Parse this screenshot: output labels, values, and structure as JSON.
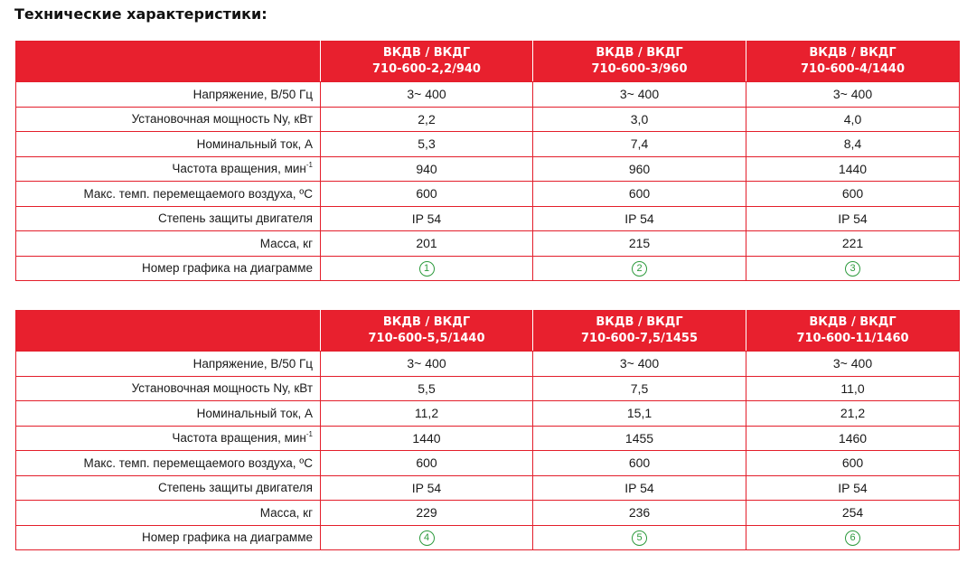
{
  "title": "Технические характеристики:",
  "tables": [
    {
      "models": [
        "ВКДВ / ВКДГ\n710-600-2,2/940",
        "ВКДВ / ВКДГ\n710-600-3/960",
        "ВКДВ / ВКДГ\n710-600-4/1440"
      ],
      "rows": [
        {
          "label": "Напряжение, В/50 Гц",
          "values": [
            "3~ 400",
            "3~ 400",
            "3~ 400"
          ]
        },
        {
          "label": "Установочная мощность Ny, кВт",
          "values": [
            "2,2",
            "3,0",
            "4,0"
          ]
        },
        {
          "label": "Номинальный ток, А",
          "values": [
            "5,3",
            "7,4",
            "8,4"
          ]
        },
        {
          "label": "Частота вращения, мин",
          "sup": "-1",
          "values": [
            "940",
            "960",
            "1440"
          ]
        },
        {
          "label": "Макс. темп. перемещаемого воздуха, ºС",
          "values": [
            "600",
            "600",
            "600"
          ]
        },
        {
          "label": "Степень защиты двигателя",
          "values": [
            "IP 54",
            "IP 54",
            "IP 54"
          ]
        },
        {
          "label": "Масса, кг",
          "values": [
            "201",
            "215",
            "221"
          ]
        },
        {
          "label": "Номер графика на диаграмме",
          "chart_numbers": [
            "1",
            "2",
            "3"
          ]
        }
      ]
    },
    {
      "models": [
        "ВКДВ / ВКДГ\n710-600-5,5/1440",
        "ВКДВ / ВКДГ\n710-600-7,5/1455",
        "ВКДВ / ВКДГ\n710-600-11/1460"
      ],
      "rows": [
        {
          "label": "Напряжение, В/50 Гц",
          "values": [
            "3~ 400",
            "3~ 400",
            "3~ 400"
          ]
        },
        {
          "label": "Установочная мощность Ny, кВт",
          "values": [
            "5,5",
            "7,5",
            "11,0"
          ]
        },
        {
          "label": "Номинальный ток, А",
          "values": [
            "11,2",
            "15,1",
            "21,2"
          ]
        },
        {
          "label": "Частота вращения, мин",
          "sup": "-1",
          "values": [
            "1440",
            "1455",
            "1460"
          ]
        },
        {
          "label": "Макс. темп. перемещаемого воздуха, ºС",
          "values": [
            "600",
            "600",
            "600"
          ]
        },
        {
          "label": "Степень защиты двигателя",
          "values": [
            "IP 54",
            "IP 54",
            "IP 54"
          ]
        },
        {
          "label": "Масса, кг",
          "values": [
            "229",
            "236",
            "254"
          ]
        },
        {
          "label": "Номер графика на диаграмме",
          "chart_numbers": [
            "4",
            "5",
            "6"
          ]
        }
      ]
    }
  ],
  "colors": {
    "header_red": "#e8202e",
    "border_red": "#e31e2b",
    "chart_number_green": "#2c9a3c"
  }
}
